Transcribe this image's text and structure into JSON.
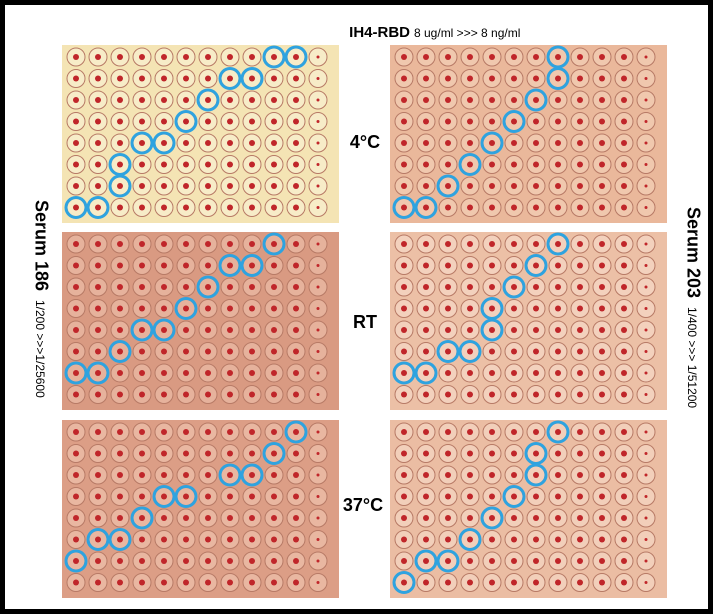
{
  "header": {
    "title": "IH4-RBD",
    "range": "8 ug/ml >>> 8 ng/ml"
  },
  "conditions": [
    "4°C",
    "RT",
    "37°C"
  ],
  "left": {
    "name": "Serum 186",
    "dilution": "1/200 >>>1/25600"
  },
  "right": {
    "name": "Serum 203",
    "dilution": "1/400 >>> 1/51200"
  }
}
